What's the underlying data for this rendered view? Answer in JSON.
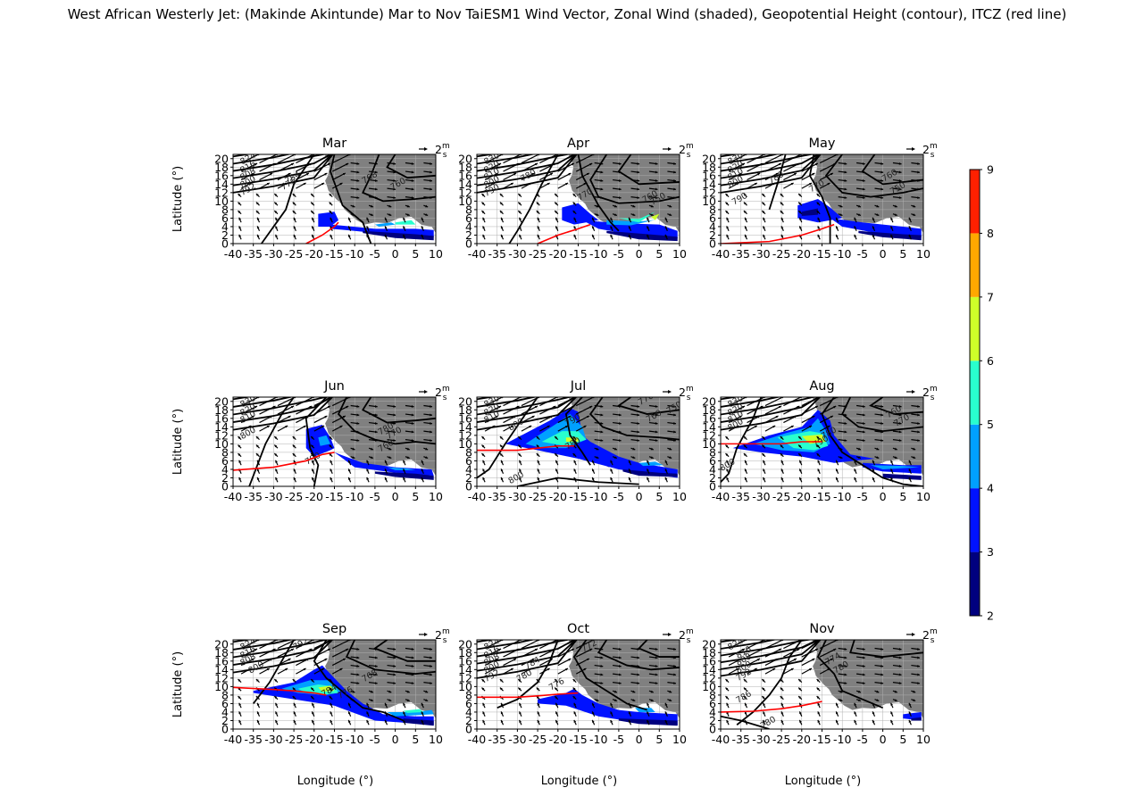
{
  "figure": {
    "title": "West African Westerly Jet: (Makinde Akintunde) Mar to Nov TaiESM1 Wind Vector, Zonal Wind (shaded), Geopotential Height (contour), ITCZ (red line)",
    "ylabel": "Latitude (°)",
    "xlabel": "Longitude (°)",
    "quiver_key": "2",
    "quiver_unit_num": "m",
    "quiver_unit_den": "s",
    "land_color": "#808080"
  },
  "chart_data": {
    "type": "contourf",
    "xlim": [
      -40,
      10
    ],
    "ylim": [
      0,
      21
    ],
    "x_ticks": [
      "-40",
      "-35",
      "-30",
      "-25",
      "-20",
      "-15",
      "-10",
      "-5",
      "0",
      "5",
      "10"
    ],
    "y_ticks": [
      "0",
      "2",
      "4",
      "6",
      "8",
      "10",
      "12",
      "14",
      "16",
      "18",
      "20"
    ],
    "colorbar": {
      "levels": [
        "2",
        "3",
        "4",
        "5",
        "6",
        "7",
        "8",
        "9"
      ],
      "colors": [
        "#00007f",
        "#0012ff",
        "#00a0ff",
        "#29ffce",
        "#ceff29",
        "#ffa800",
        "#ff2000"
      ]
    },
    "panels": [
      {
        "month": "Mar",
        "itcz": [
          [
            -22,
            0
          ],
          [
            -18,
            2
          ],
          [
            -15,
            4
          ],
          [
            -14,
            5
          ]
        ],
        "contour_labels": [
          "824",
          "816",
          "808",
          "800",
          "792",
          "784",
          "776",
          "768",
          "760"
        ]
      },
      {
        "month": "Apr",
        "itcz": [
          [
            -25,
            0
          ],
          [
            -20,
            2
          ],
          [
            -15,
            3.5
          ],
          [
            -12,
            4.5
          ]
        ],
        "contour_labels": [
          "830",
          "820",
          "810",
          "800",
          "790",
          "780",
          "770",
          "760",
          "750"
        ]
      },
      {
        "month": "May",
        "itcz": [
          [
            -40,
            0
          ],
          [
            -28,
            0.5
          ],
          [
            -20,
            2
          ],
          [
            -15,
            3.5
          ],
          [
            -12,
            4.5
          ]
        ],
        "contour_labels": [
          "830",
          "820",
          "810",
          "800",
          "790",
          "780",
          "770",
          "760",
          "750"
        ]
      },
      {
        "month": "Jun",
        "itcz": [
          [
            -40,
            3.8
          ],
          [
            -30,
            4.5
          ],
          [
            -22,
            6
          ],
          [
            -18,
            7.5
          ],
          [
            -15,
            8
          ]
        ],
        "contour_labels": [
          "830",
          "820",
          "810",
          "800",
          "790",
          "780",
          "770",
          "760"
        ]
      },
      {
        "month": "Jul",
        "itcz": [
          [
            -40,
            8.5
          ],
          [
            -30,
            8.5
          ],
          [
            -25,
            9
          ],
          [
            -20,
            9.5
          ],
          [
            -16,
            9.5
          ]
        ],
        "contour_labels": [
          "830",
          "820",
          "810",
          "800",
          "790",
          "780",
          "770",
          "760",
          "750",
          "800"
        ]
      },
      {
        "month": "Aug",
        "itcz": [
          [
            -40,
            10
          ],
          [
            -30,
            10
          ],
          [
            -25,
            10
          ],
          [
            -20,
            10.5
          ],
          [
            -15,
            10.5
          ]
        ],
        "contour_labels": [
          "830",
          "820",
          "810",
          "800",
          "790",
          "780",
          "770",
          "760",
          "800"
        ]
      },
      {
        "month": "Sep",
        "itcz": [
          [
            -40,
            9.8
          ],
          [
            -30,
            9.3
          ],
          [
            -25,
            9
          ],
          [
            -20,
            8.5
          ],
          [
            -17,
            8
          ]
        ],
        "contour_labels": [
          "824",
          "816",
          "808",
          "800",
          "792",
          "784",
          "776",
          "768"
        ]
      },
      {
        "month": "Oct",
        "itcz": [
          [
            -40,
            7.5
          ],
          [
            -30,
            7.5
          ],
          [
            -25,
            7.8
          ],
          [
            -20,
            8.2
          ],
          [
            -15,
            8.5
          ]
        ],
        "contour_labels": [
          "824",
          "816",
          "808",
          "800",
          "792",
          "784",
          "780",
          "776",
          "772"
        ]
      },
      {
        "month": "Nov",
        "itcz": [
          [
            -40,
            4
          ],
          [
            -32,
            4.2
          ],
          [
            -25,
            4.8
          ],
          [
            -20,
            5.5
          ],
          [
            -15,
            6.5
          ]
        ],
        "contour_labels": [
          "824",
          "816",
          "808",
          "800",
          "792",
          "786",
          "780",
          "774",
          "780"
        ]
      }
    ]
  }
}
